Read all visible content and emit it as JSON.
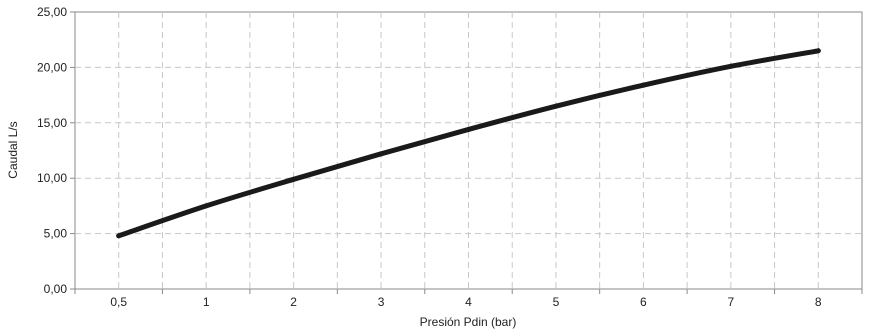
{
  "chart_data": {
    "type": "line",
    "title": "",
    "xlabel": "Presión Pdin (bar)",
    "ylabel": "Caudal L/s",
    "x_categories": [
      "0,5",
      "1",
      "2",
      "3",
      "4",
      "5",
      "6",
      "7",
      "8"
    ],
    "y_ticks": [
      "0,00",
      "5,00",
      "10,00",
      "15,00",
      "20,00",
      "25,00"
    ],
    "ylim": [
      0,
      25
    ],
    "grid": true,
    "legend": "none",
    "series": [
      {
        "values": [
          4.8,
          7.5,
          9.9,
          12.2,
          14.4,
          16.5,
          18.4,
          20.1,
          21.5
        ],
        "color": "#1a1a1a"
      }
    ]
  }
}
